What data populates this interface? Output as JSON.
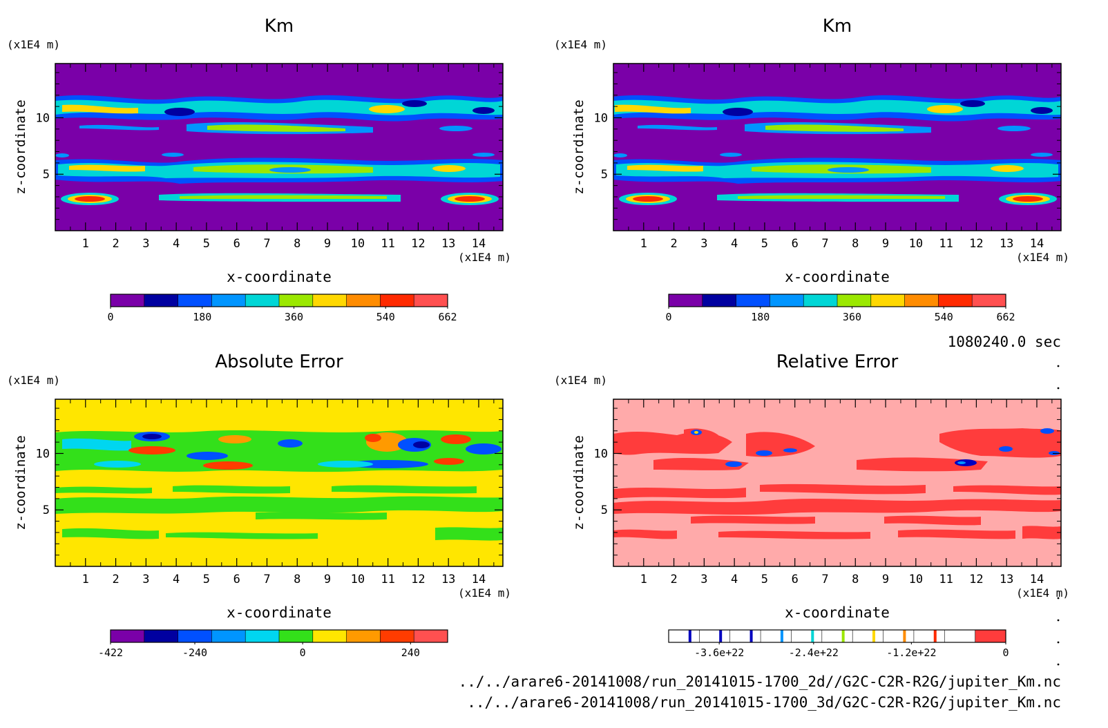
{
  "footer": {
    "time": "1080240.0 sec",
    "file1": "../../arare6-20141008/run_20141015-1700_2d//G2C-C2R-R2G/jupiter_Km.nc",
    "file2": "../../arare6-20141008/run_20141015-1700_3d/G2C-C2R-R2G/jupiter_Km.nc"
  },
  "chart_data": [
    {
      "type": "heatmap",
      "title": "Km",
      "xlabel": "x-coordinate",
      "ylabel": "z-coordinate",
      "x_unit": "(x1E4 m)",
      "y_unit": "(x1E4 m)",
      "xticks": [
        "1",
        "2",
        "3",
        "4",
        "5",
        "6",
        "7",
        "8",
        "9",
        "10",
        "11",
        "12",
        "13",
        "14"
      ],
      "yticks": [
        "5",
        "10"
      ],
      "xlim": [
        0,
        14.8
      ],
      "ylim": [
        0,
        14.8
      ],
      "colorbar": {
        "labels": [
          "0",
          "180",
          "360",
          "540",
          "662"
        ],
        "colors": [
          "#7a00a8",
          "#0000a0",
          "#0050ff",
          "#0095ff",
          "#00d6d6",
          "#9be800",
          "#ffd800",
          "#ff8c00",
          "#ff2a00",
          "#ff5050"
        ]
      }
    },
    {
      "type": "heatmap",
      "title": "Km",
      "xlabel": "x-coordinate",
      "ylabel": "z-coordinate",
      "x_unit": "(x1E4 m)",
      "y_unit": "(x1E4 m)",
      "xticks": [
        "1",
        "2",
        "3",
        "4",
        "5",
        "6",
        "7",
        "8",
        "9",
        "10",
        "11",
        "12",
        "13",
        "14"
      ],
      "yticks": [
        "5",
        "10"
      ],
      "xlim": [
        0,
        14.8
      ],
      "ylim": [
        0,
        14.8
      ],
      "colorbar": {
        "labels": [
          "0",
          "180",
          "360",
          "540",
          "662"
        ],
        "colors": [
          "#7a00a8",
          "#0000a0",
          "#0050ff",
          "#0095ff",
          "#00d6d6",
          "#9be800",
          "#ffd800",
          "#ff8c00",
          "#ff2a00",
          "#ff5050"
        ]
      }
    },
    {
      "type": "heatmap",
      "title": "Absolute Error",
      "xlabel": "x-coordinate",
      "ylabel": "z-coordinate",
      "x_unit": "(x1E4 m)",
      "y_unit": "(x1E4 m)",
      "xticks": [
        "1",
        "2",
        "3",
        "4",
        "5",
        "6",
        "7",
        "8",
        "9",
        "10",
        "11",
        "12",
        "13",
        "14"
      ],
      "yticks": [
        "5",
        "10"
      ],
      "xlim": [
        0,
        14.8
      ],
      "ylim": [
        0,
        14.8
      ],
      "colorbar": {
        "labels": [
          "-422",
          "-240",
          "0",
          "240"
        ],
        "colors": [
          "#7a00a8",
          "#0000a0",
          "#0050ff",
          "#0095ff",
          "#00d6f0",
          "#33e01a",
          "#ffe600",
          "#ff9a00",
          "#ff3c00",
          "#ff5050"
        ]
      }
    },
    {
      "type": "heatmap",
      "title": "Relative Error",
      "xlabel": "x-coordinate",
      "ylabel": "z-coordinate",
      "x_unit": "(x1E4 m)",
      "y_unit": "(x1E4 m)",
      "xticks": [
        "1",
        "2",
        "3",
        "4",
        "5",
        "6",
        "7",
        "8",
        "9",
        "10",
        "11",
        "12",
        "13",
        "14"
      ],
      "yticks": [
        "5",
        "10"
      ],
      "xlim": [
        0,
        14.8
      ],
      "ylim": [
        0,
        14.8
      ],
      "colorbar": {
        "labels": [
          "-3.6e+22",
          "-2.4e+22",
          "-1.2e+22",
          "0"
        ],
        "colors": [
          "#ffffff",
          "#ffffff",
          "#ffffff",
          "#ffffff",
          "#ffffff",
          "#ffffff",
          "#ffffff",
          "#ffffff",
          "#ffffff",
          "#ffffff",
          "#ff3c3c"
        ],
        "stripe_colors": [
          "#0000c0",
          "#0000c0",
          "#0000c0",
          "#0095ff",
          "#00d6d6",
          "#9be800",
          "#ffd800",
          "#ff8c00",
          "#ff2a00"
        ]
      }
    }
  ]
}
